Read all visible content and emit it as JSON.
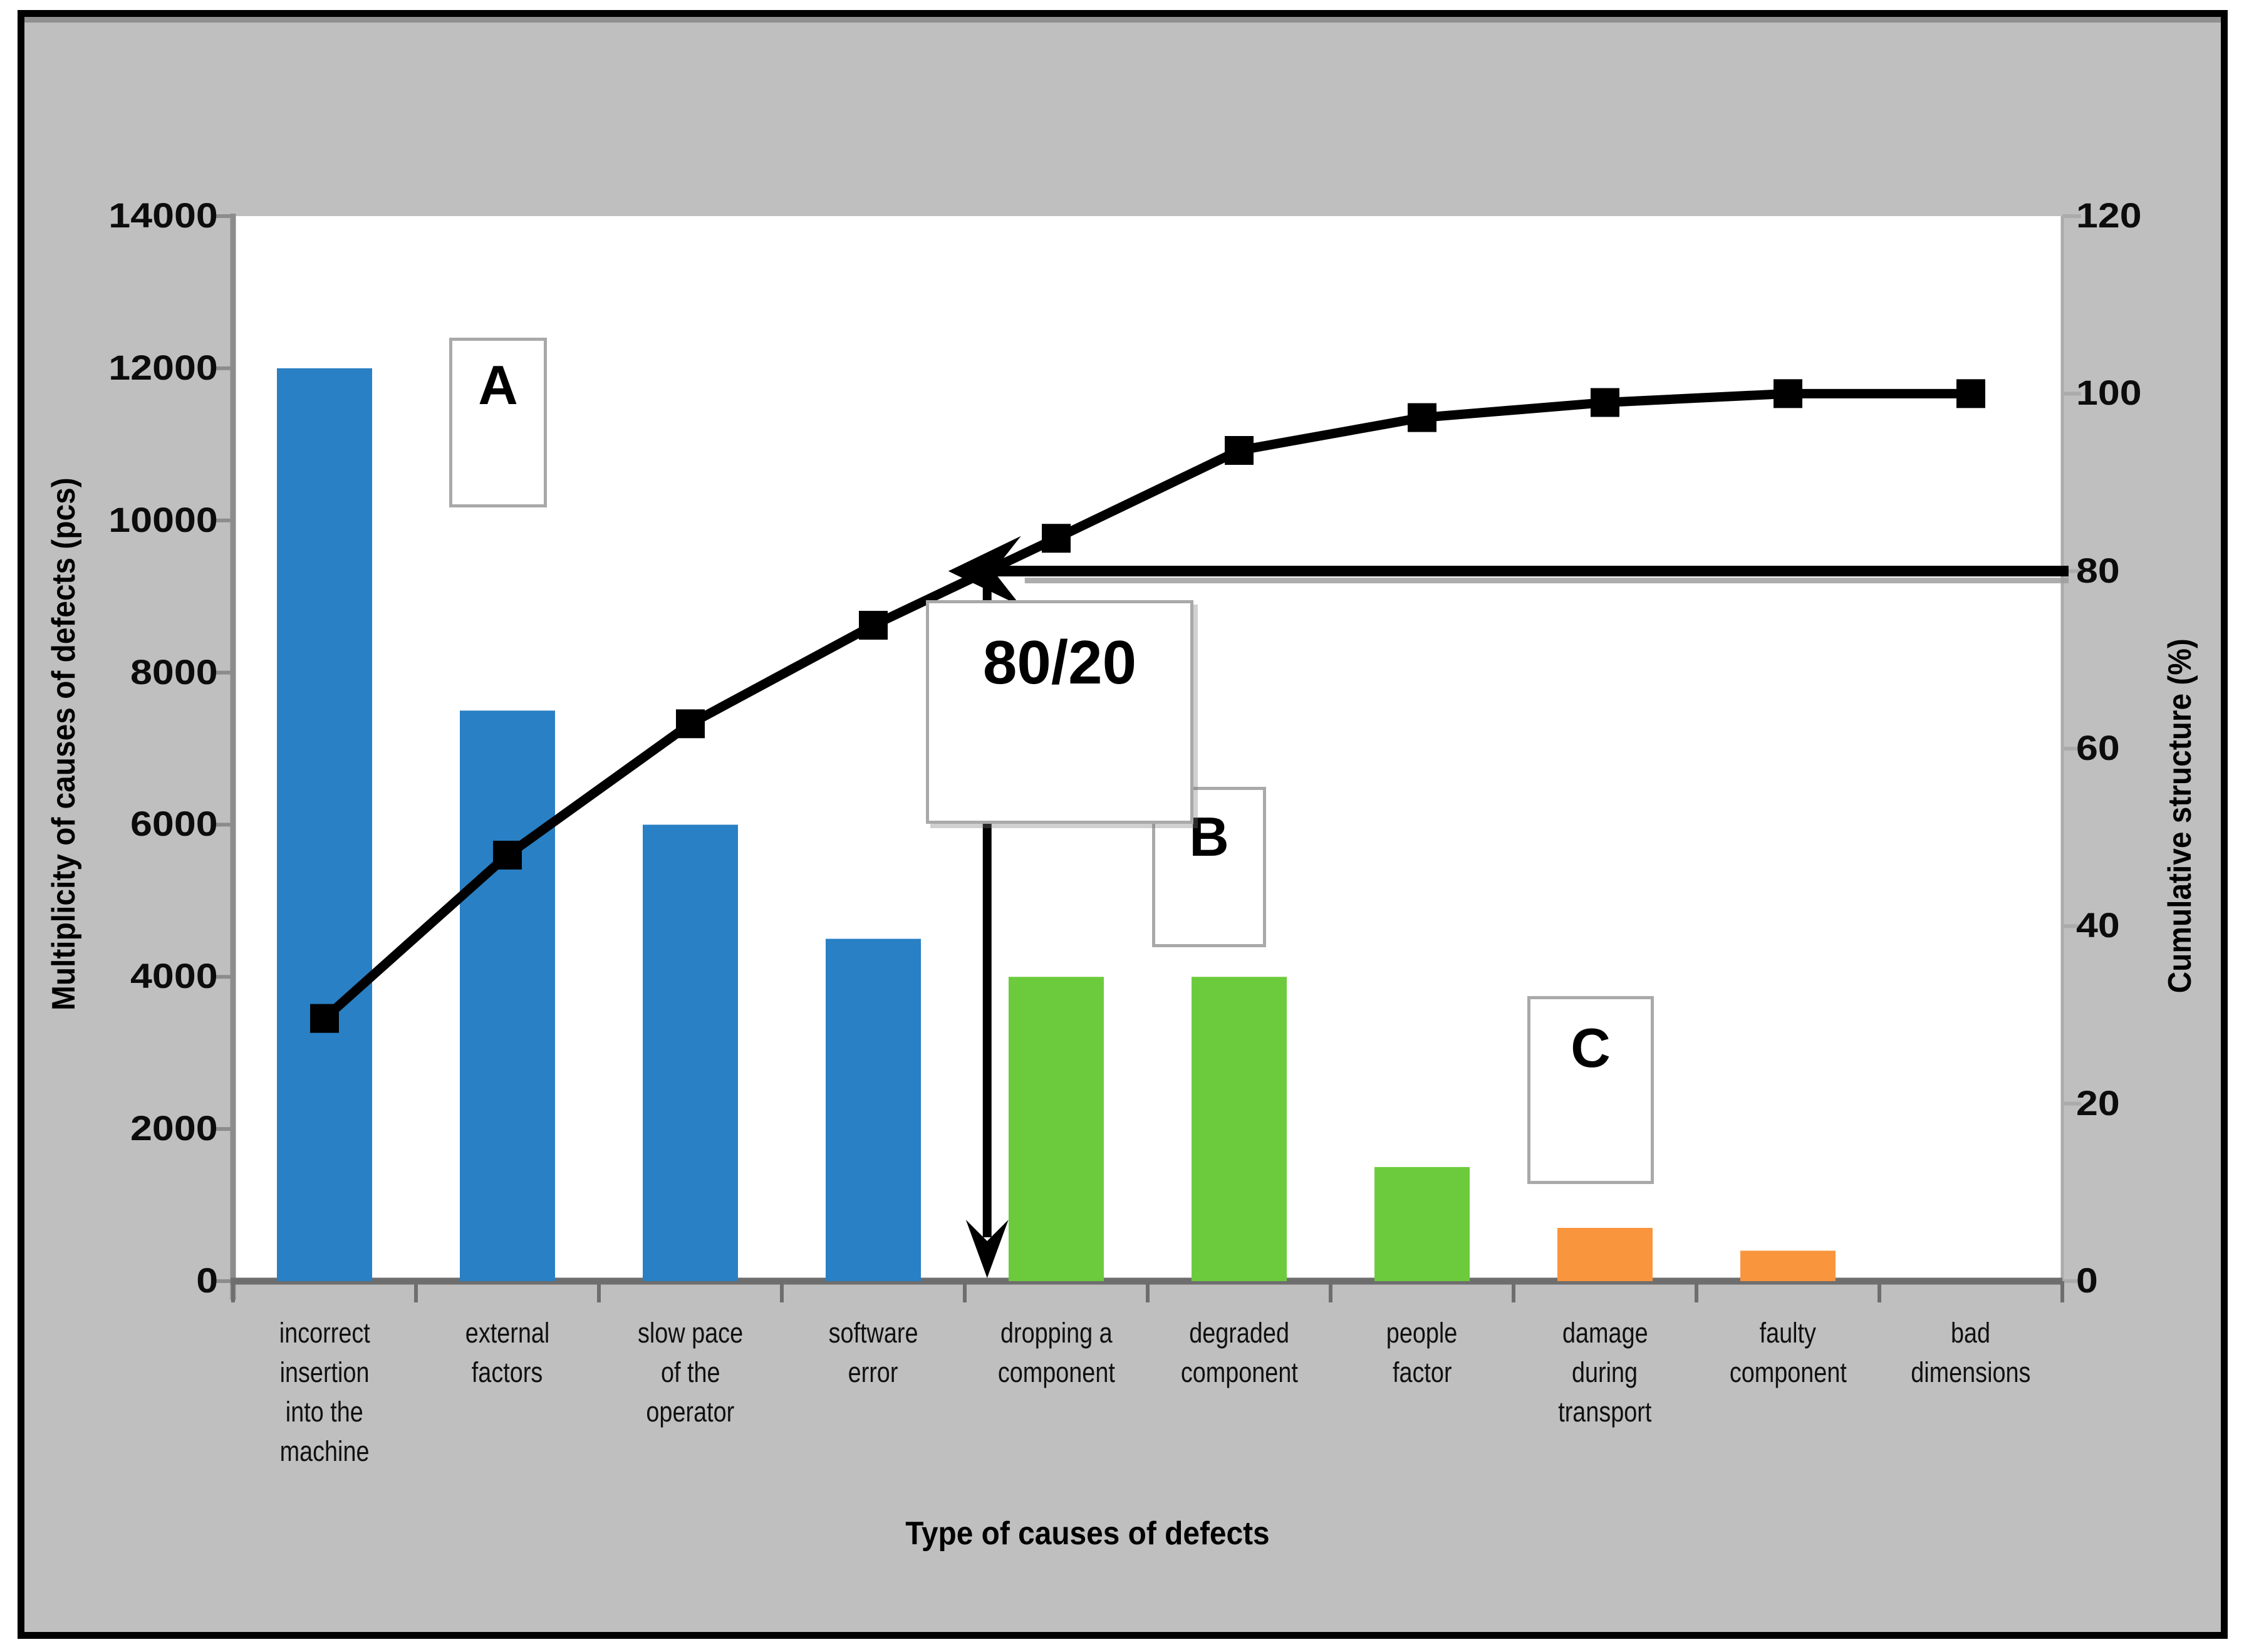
{
  "chart_data": {
    "type": "bar",
    "subtype": "pareto-combo-bar-line",
    "title": "",
    "xlabel": "Type of causes of defects",
    "ylabel_left": "Multiplicity of causes of defects (pcs)",
    "ylabel_right": "Cumulative structure (%)",
    "grid": false,
    "legend": "none",
    "categories": [
      "incorrect insertion into the machine",
      "external factors",
      "slow pace of the operator",
      "software error",
      "dropping a component",
      "degraded component",
      "people factor",
      "damage during transport",
      "faulty component",
      "bad dimensions"
    ],
    "category_lines": [
      [
        "incorrect",
        "insertion",
        "into the",
        "machine"
      ],
      [
        "external",
        "factors"
      ],
      [
        "slow pace",
        "of the",
        "operator"
      ],
      [
        "software",
        "error"
      ],
      [
        "dropping a",
        "component"
      ],
      [
        "degraded",
        "component"
      ],
      [
        "people",
        "factor"
      ],
      [
        "damage",
        "during",
        "transport"
      ],
      [
        "faulty",
        "component"
      ],
      [
        "bad",
        "dimensions"
      ]
    ],
    "series": [
      {
        "name": "Multiplicity of causes of defects (pcs)",
        "type": "bar",
        "values": [
          12000,
          7500,
          6000,
          4500,
          4000,
          4000,
          1500,
          700,
          400,
          0
        ],
        "bar_color_keys": [
          "blue",
          "blue",
          "blue",
          "blue",
          "green",
          "green",
          "green",
          "orange",
          "orange",
          "none"
        ]
      },
      {
        "name": "Cumulative structure (%)",
        "type": "line",
        "axis": "right",
        "values": [
          29.6,
          48.0,
          62.8,
          73.9,
          83.7,
          93.6,
          97.3,
          99.0,
          100,
          100
        ]
      }
    ],
    "y_left": {
      "min": 0,
      "max": 14000,
      "step": 2000,
      "ticks": [
        "0",
        "2000",
        "4000",
        "6000",
        "8000",
        "10000",
        "12000",
        "14000"
      ]
    },
    "y_right": {
      "min": 0,
      "max": 120,
      "step": 20,
      "ticks": [
        "0",
        "20",
        "40",
        "60",
        "80",
        "100",
        "120"
      ]
    },
    "annotations": {
      "group_a": "A",
      "group_b": "B",
      "group_c": "C",
      "pareto_label": "80/20",
      "reference_pct": 80
    }
  },
  "colors": {
    "background": "#BFBFBF",
    "plot_bg": "#FFFFFF",
    "frame": "#000000",
    "bar_blue": "#2980C4",
    "bar_green": "#6CCB3C",
    "bar_orange": "#F9953D",
    "line": "#000000",
    "axis_gray": "#8C8C8C",
    "baseline_gray": "#6E6E6E",
    "right_axis_gray": "#ABABAB",
    "box_border": "#A9A9A9",
    "shadow_gray": "#9E9E9E"
  }
}
